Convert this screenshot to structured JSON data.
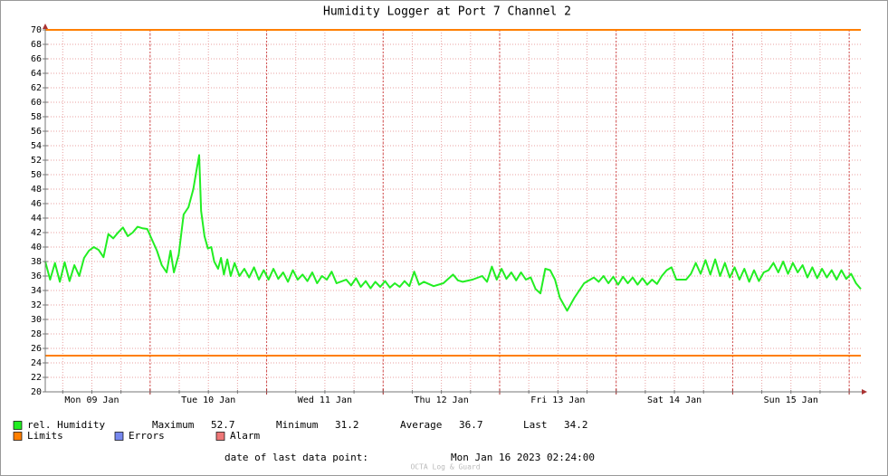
{
  "chart_data": {
    "type": "line",
    "title": "Humidity Logger at Port 7 Channel 2",
    "xlim": [
      0,
      168
    ],
    "ylim": [
      20,
      70
    ],
    "yticks": [
      20,
      22,
      24,
      26,
      28,
      30,
      32,
      34,
      36,
      38,
      40,
      42,
      44,
      46,
      48,
      50,
      52,
      54,
      56,
      58,
      60,
      62,
      64,
      66,
      68,
      70
    ],
    "xticks": [
      {
        "value": 9.6,
        "label": "Mon 09 Jan"
      },
      {
        "value": 33.6,
        "label": "Tue 10 Jan"
      },
      {
        "value": 57.6,
        "label": "Wed 11 Jan"
      },
      {
        "value": 81.6,
        "label": "Thu 12 Jan"
      },
      {
        "value": 105.6,
        "label": "Fri 13 Jan"
      },
      {
        "value": 129.6,
        "label": "Sat 14 Jan"
      },
      {
        "value": 153.6,
        "label": "Sun 15 Jan"
      }
    ],
    "xgrid_major": [
      21.6,
      45.6,
      69.6,
      93.6,
      117.6,
      141.6,
      165.6
    ],
    "xgrid_minor": [
      3.6,
      9.6,
      15.6,
      21.6,
      27.6,
      33.6,
      39.6,
      45.6,
      51.6,
      57.6,
      63.6,
      69.6,
      75.6,
      81.6,
      87.6,
      93.6,
      99.6,
      105.6,
      111.6,
      117.6,
      123.6,
      129.6,
      135.6,
      141.6,
      147.6,
      153.6,
      159.6,
      165.6
    ],
    "grid": true,
    "limits": {
      "name": "Limits",
      "color": "#ff7f00",
      "values": [
        70,
        25
      ]
    },
    "series": [
      {
        "name": "rel. Humidity",
        "color": "#22ee22",
        "x": [
          0,
          1,
          2,
          3,
          4,
          5,
          6,
          7,
          8,
          9,
          10,
          11,
          12,
          13,
          14,
          15,
          16,
          17,
          18,
          19,
          20,
          21,
          22,
          23,
          24,
          25,
          25.8,
          26.5,
          27.5,
          28.5,
          29.5,
          30.5,
          31,
          31.7,
          32.1,
          32.8,
          33.5,
          34.2,
          34.8,
          35.6,
          36.2,
          36.8,
          37.5,
          38.2,
          39,
          40,
          41,
          42,
          43,
          44,
          45,
          46,
          47,
          48,
          49,
          50,
          51,
          52,
          53,
          54,
          55,
          56,
          57,
          58,
          59,
          60,
          62,
          63,
          64,
          65,
          66,
          67,
          68,
          69,
          70,
          71,
          72,
          73,
          74,
          75,
          76,
          77,
          78,
          80,
          82,
          84,
          85,
          86,
          88,
          90,
          91,
          92,
          93,
          94,
          95,
          96,
          97,
          98,
          99,
          100,
          101,
          102,
          103,
          104,
          105,
          106,
          107.5,
          109,
          111,
          113,
          114,
          115,
          116,
          117,
          118,
          119,
          120,
          121,
          122,
          123,
          124,
          125,
          126,
          127,
          128,
          129,
          130,
          132,
          133,
          134,
          135,
          136,
          137,
          138,
          139,
          140,
          141,
          142,
          143,
          144,
          145,
          146,
          147,
          148,
          149,
          150,
          151,
          152,
          153,
          154,
          155,
          156,
          157,
          158,
          159,
          160,
          161,
          162,
          163,
          164,
          165,
          166,
          167,
          168
        ],
        "values": [
          38,
          35.5,
          37.8,
          35.2,
          37.9,
          35.3,
          37.5,
          36,
          38.5,
          39.5,
          40,
          39.6,
          38.6,
          41.8,
          41.2,
          42,
          42.7,
          41.5,
          42,
          42.8,
          42.6,
          42.5,
          41,
          39.5,
          37.5,
          36.5,
          39.5,
          36.5,
          39,
          44.5,
          45.5,
          48,
          50,
          52.7,
          45,
          41.5,
          39.8,
          40,
          38,
          37,
          38.5,
          36.2,
          38.3,
          36,
          37.8,
          36,
          37,
          35.8,
          37.2,
          35.5,
          36.8,
          35.5,
          37,
          35.6,
          36.5,
          35.2,
          36.8,
          35.5,
          36.2,
          35.3,
          36.5,
          35,
          36,
          35.5,
          36.6,
          35,
          35.5,
          34.7,
          35.7,
          34.5,
          35.3,
          34.3,
          35.2,
          34.5,
          35.3,
          34.4,
          35,
          34.5,
          35.3,
          34.6,
          36.6,
          34.8,
          35.2,
          34.6,
          35,
          36.2,
          35.4,
          35.2,
          35.5,
          36,
          35.2,
          37.3,
          35.5,
          37,
          35.6,
          36.5,
          35.4,
          36.5,
          35.5,
          35.8,
          34.2,
          33.6,
          37,
          36.8,
          35.5,
          33,
          31.2,
          33,
          35,
          35.8,
          35.2,
          36,
          35,
          35.9,
          34.8,
          35.9,
          35,
          35.8,
          34.8,
          35.7,
          34.8,
          35.5,
          34.9,
          36,
          36.8,
          37.2,
          35.5,
          35.5,
          36.3,
          37.8,
          36.3,
          38.2,
          36.2,
          38.3,
          36,
          37.8,
          35.8,
          37.2,
          35.5,
          37,
          35.2,
          36.8,
          35.3,
          36.5,
          36.8,
          37.8,
          36.5,
          38,
          36.3,
          37.8,
          36.5,
          37.5,
          35.8,
          37.2,
          35.7,
          37,
          35.8,
          36.8,
          35.5,
          36.8,
          35.6,
          36.3,
          35,
          34.2
        ]
      }
    ],
    "stats": [
      {
        "label": "Maximum",
        "value": 52.7
      },
      {
        "label": "Minimum",
        "value": 31.2
      },
      {
        "label": "Average",
        "value": 36.7
      },
      {
        "label": "Last",
        "value": 34.2
      }
    ],
    "legend_extra": [
      {
        "name": "Errors",
        "color": "#7788ee"
      },
      {
        "name": "Alarm",
        "color": "#ee7777"
      }
    ],
    "footer": {
      "label": "date of last data point:",
      "value": "Mon Jan 16 2023 02:24:00"
    },
    "watermark": "OCTA Log & Guard"
  }
}
